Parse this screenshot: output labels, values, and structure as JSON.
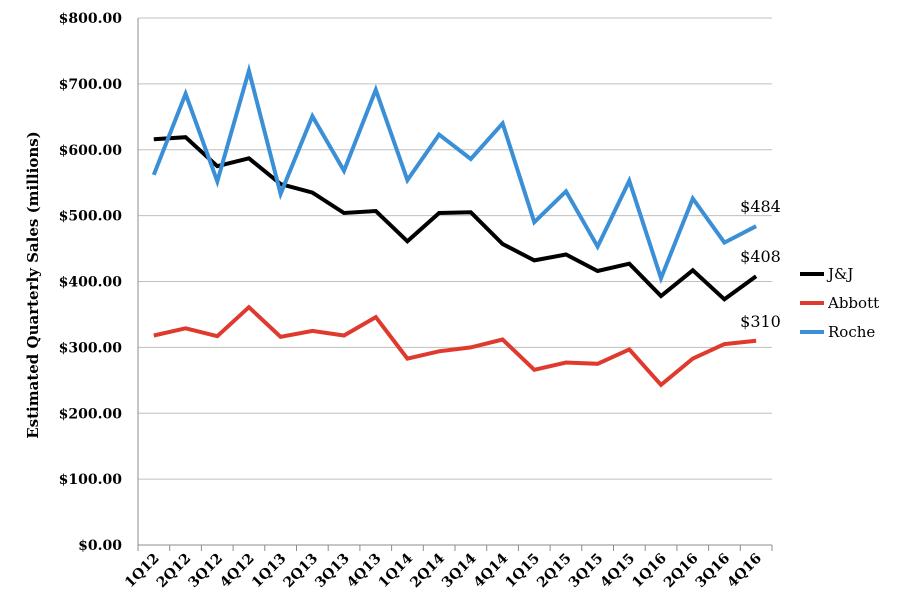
{
  "chart_data": {
    "type": "line",
    "ylabel": "Estimated Quarterly Sales (millions)",
    "ylim": [
      0,
      800
    ],
    "y_ticks": [
      "$0.00",
      "$100.00",
      "$200.00",
      "$300.00",
      "$400.00",
      "$500.00",
      "$600.00",
      "$700.00",
      "$800.00"
    ],
    "y_tick_values": [
      0,
      100,
      200,
      300,
      400,
      500,
      600,
      700,
      800
    ],
    "grid": true,
    "legend_position": "right",
    "categories": [
      "1Q12",
      "2Q12",
      "3Q12",
      "4Q12",
      "1Q13",
      "2Q13",
      "3Q13",
      "4Q13",
      "1Q14",
      "2Q14",
      "3Q14",
      "4Q14",
      "1Q15",
      "2Q15",
      "3Q15",
      "4Q15",
      "1Q16",
      "2Q16",
      "3Q16",
      "4Q16"
    ],
    "series": [
      {
        "name": "J&J",
        "color": "#000000",
        "values": [
          616,
          619,
          575,
          587,
          548,
          535,
          504,
          507,
          461,
          504,
          505,
          457,
          432,
          441,
          416,
          427,
          378,
          417,
          373,
          408
        ],
        "end_label": "$408"
      },
      {
        "name": "Abbott",
        "color": "#e03a2f",
        "values": [
          318,
          329,
          317,
          361,
          316,
          325,
          318,
          346,
          283,
          294,
          300,
          312,
          266,
          277,
          275,
          297,
          243,
          283,
          305,
          310
        ],
        "end_label": "$310"
      },
      {
        "name": "Roche",
        "color": "#3a8fd6",
        "values": [
          562,
          685,
          552,
          720,
          533,
          651,
          568,
          691,
          554,
          623,
          586,
          640,
          490,
          537,
          453,
          553,
          405,
          526,
          459,
          484
        ],
        "end_label": "$484"
      }
    ]
  }
}
